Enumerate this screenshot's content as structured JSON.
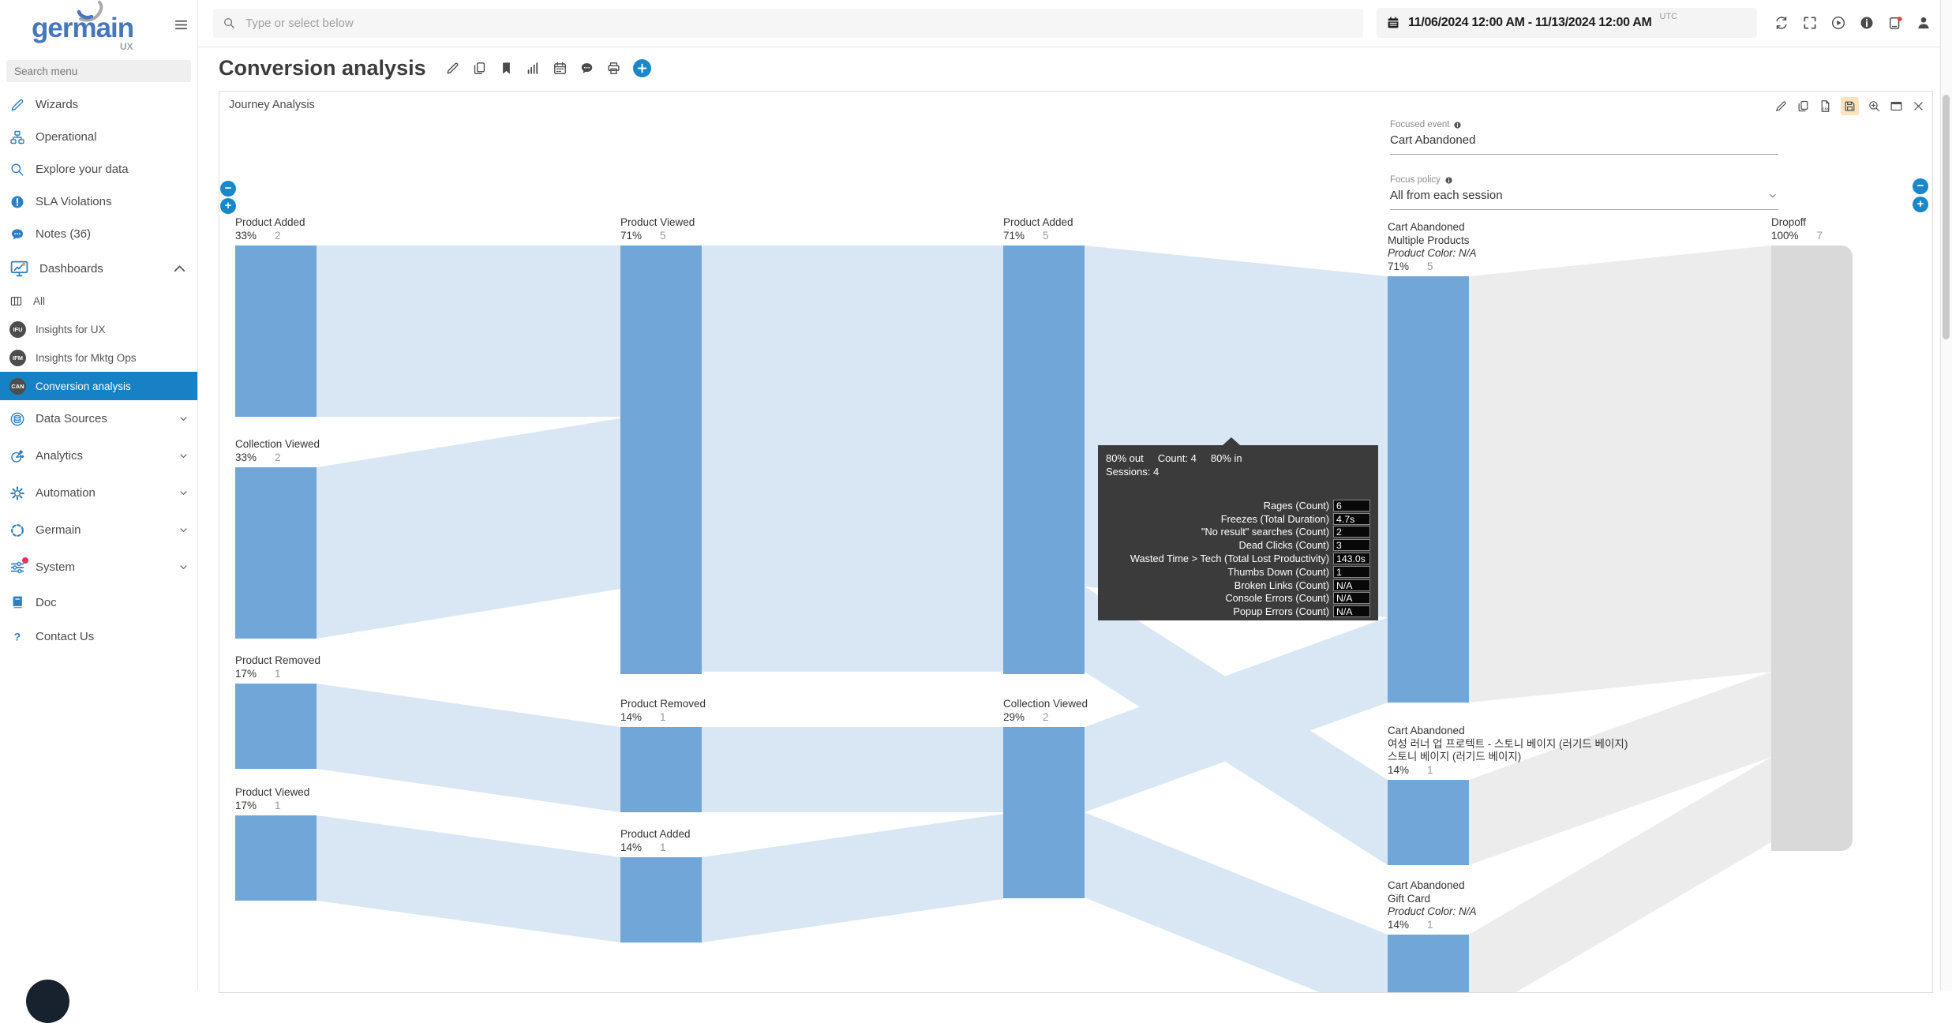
{
  "colors": {
    "accent": "#1a87c9",
    "node_blue": "#70a6d8",
    "link_blue": "#d9e7f5",
    "dropoff_node": "#d9d9d9",
    "dropoff_link": "#ececec",
    "selected_blue": "#1681c4"
  },
  "topbar": {
    "search_placeholder": "Type or select below",
    "date_range": "11/06/2024 12:00 AM - 11/13/2024 12:00 AM",
    "timezone": "UTC",
    "icons": [
      "refresh",
      "fullscreen",
      "playcircle",
      "infocircle",
      "devicedot",
      "person"
    ]
  },
  "sidebar": {
    "logo": "germain",
    "logo_sub": "UX",
    "search_placeholder": "Search menu",
    "items": [
      {
        "icon": "pencil",
        "label": "Wizards"
      },
      {
        "icon": "sitemap",
        "label": "Operational"
      },
      {
        "icon": "search",
        "label": "Explore your data"
      },
      {
        "icon": "alert",
        "label": "SLA Violations"
      },
      {
        "icon": "comment",
        "label": "Notes (36)"
      },
      {
        "icon": "dashboard",
        "label": "Dashboards",
        "chevron": "up",
        "big": true
      },
      {
        "icon": "columns",
        "label": "All",
        "child": true
      },
      {
        "badge": "IFU",
        "label": "Insights for UX",
        "child": true
      },
      {
        "badge": "IFM",
        "label": "Insights for Mktg Ops",
        "child": true
      },
      {
        "badge": "CAN",
        "label": "Conversion analysis",
        "child": true,
        "selected": true
      },
      {
        "icon": "datasource",
        "label": "Data Sources",
        "chevron": "down"
      },
      {
        "icon": "analytics",
        "label": "Analytics",
        "chevron": "down"
      },
      {
        "icon": "gear",
        "label": "Automation",
        "chevron": "down"
      },
      {
        "icon": "dashedcircle",
        "label": "Germain",
        "chevron": "down"
      },
      {
        "icon": "sliders",
        "label": "System",
        "chevron": "down",
        "dot": true
      },
      {
        "icon": "book",
        "label": "Doc"
      },
      {
        "icon": "question",
        "label": "Contact Us"
      }
    ]
  },
  "page": {
    "title": "Conversion analysis",
    "title_icons": [
      "pencil",
      "copy",
      "bookmark",
      "bars",
      "calendar",
      "comment",
      "printer"
    ]
  },
  "panel": {
    "title": "Journey Analysis",
    "icons": [
      "pencil",
      "copy",
      "filecsv",
      "floppy",
      "zoomin",
      "window",
      "close"
    ],
    "active_icon": "floppy",
    "focused_event_label": "Focused event",
    "focused_event_value": "Cart Abandoned",
    "focus_policy_label": "Focus policy",
    "focus_policy_value": "All from each session",
    "zoom_out_glyph": "−",
    "zoom_in_glyph": "+"
  },
  "sankey": {
    "nodes": [
      {
        "lines": [
          "Product Added"
        ],
        "pct": "33%",
        "count": "2"
      },
      {
        "lines": [
          "Collection Viewed"
        ],
        "pct": "33%",
        "count": "2"
      },
      {
        "lines": [
          "Product Removed"
        ],
        "pct": "17%",
        "count": "1"
      },
      {
        "lines": [
          "Product Viewed"
        ],
        "pct": "17%",
        "count": "1"
      },
      {
        "lines": [
          "Product Viewed"
        ],
        "pct": "71%",
        "count": "5"
      },
      {
        "lines": [
          "Product Removed"
        ],
        "pct": "14%",
        "count": "1"
      },
      {
        "lines": [
          "Product Added"
        ],
        "pct": "14%",
        "count": "1"
      },
      {
        "lines": [
          "Product Added"
        ],
        "pct": "71%",
        "count": "5"
      },
      {
        "lines": [
          "Collection Viewed"
        ],
        "pct": "29%",
        "count": "2"
      },
      {
        "lines": [
          "Cart Abandoned",
          "Multiple Products"
        ],
        "italic": "Product Color:  N/A",
        "pct": "71%",
        "count": "5"
      },
      {
        "lines": [
          "Cart Abandoned",
          "여성 러너 업 프로텍트 - 스토니 베이지 (러기드 베이지)",
          "스토니 베이지 (러기드 베이지)"
        ],
        "pct": "14%",
        "count": "1"
      },
      {
        "lines": [
          "Cart Abandoned",
          "Gift Card"
        ],
        "italic": "Product Color:  N/A",
        "pct": "14%",
        "count": "1"
      },
      {
        "lines": [
          "Dropoff"
        ],
        "pct": "100%",
        "count": "7"
      }
    ]
  },
  "tooltip": {
    "out": "80% out",
    "count": "Count: 4",
    "in": "80% in",
    "sessions": "Sessions: 4",
    "rows": [
      {
        "label": "Rages (Count)",
        "value": "6"
      },
      {
        "label": "Freezes (Total Duration)",
        "value": "4.7s"
      },
      {
        "label": "\"No result\" searches (Count)",
        "value": "2"
      },
      {
        "label": "Dead Clicks (Count)",
        "value": "3"
      },
      {
        "label": "Wasted Time > Tech (Total Lost Productivity)",
        "value": "143.0s"
      },
      {
        "label": "Thumbs Down (Count)",
        "value": "1"
      },
      {
        "label": "Broken Links (Count)",
        "value": "N/A"
      },
      {
        "label": "Console Errors (Count)",
        "value": "N/A"
      },
      {
        "label": "Popup Errors (Count)",
        "value": "N/A"
      }
    ]
  }
}
